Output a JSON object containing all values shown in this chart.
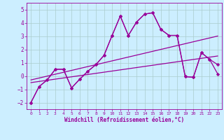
{
  "xlabel": "Windchill (Refroidissement éolien,°C)",
  "background_color": "#cceeff",
  "grid_color": "#aacccc",
  "line_color": "#990099",
  "x_ticks": [
    0,
    1,
    2,
    3,
    4,
    5,
    6,
    7,
    8,
    9,
    10,
    11,
    12,
    13,
    14,
    15,
    16,
    17,
    18,
    19,
    20,
    21,
    22,
    23
  ],
  "y_ticks": [
    -2,
    -1,
    0,
    1,
    2,
    3,
    4,
    5
  ],
  "xlim": [
    -0.5,
    23.5
  ],
  "ylim": [
    -2.5,
    5.5
  ],
  "series": [
    {
      "x": [
        0,
        1,
        2,
        3,
        4,
        5,
        6,
        7,
        8,
        9,
        10,
        11,
        12,
        13,
        14,
        15,
        16,
        17,
        18,
        19,
        20,
        21,
        22,
        23
      ],
      "y": [
        -2.0,
        -0.8,
        -0.3,
        0.5,
        0.5,
        -0.9,
        -0.25,
        0.35,
        0.85,
        1.55,
        3.05,
        4.5,
        3.05,
        4.05,
        4.65,
        4.75,
        3.5,
        3.05,
        3.05,
        -0.05,
        -0.1,
        1.75,
        1.25,
        0.85
      ],
      "marker": "D",
      "markersize": 2.2,
      "linewidth": 0.9
    },
    {
      "x": [
        0,
        1,
        2,
        3,
        4,
        5,
        6,
        7,
        8,
        9,
        10,
        11,
        12,
        13,
        14,
        15,
        16,
        17,
        18,
        19,
        20,
        21,
        22,
        23
      ],
      "y": [
        -2.0,
        -0.8,
        -0.3,
        0.5,
        0.5,
        -0.9,
        -0.25,
        0.35,
        0.85,
        1.55,
        3.05,
        4.5,
        3.05,
        4.05,
        4.65,
        4.75,
        3.5,
        3.05,
        3.05,
        -0.05,
        -0.1,
        1.75,
        1.25,
        0.15
      ],
      "marker": "D",
      "markersize": 2.2,
      "linewidth": 0.9
    },
    {
      "x": [
        0,
        23
      ],
      "y": [
        -0.3,
        3.0
      ],
      "marker": null,
      "markersize": 0,
      "linewidth": 0.9
    },
    {
      "x": [
        0,
        23
      ],
      "y": [
        -0.5,
        1.5
      ],
      "marker": null,
      "markersize": 0,
      "linewidth": 0.9
    }
  ]
}
